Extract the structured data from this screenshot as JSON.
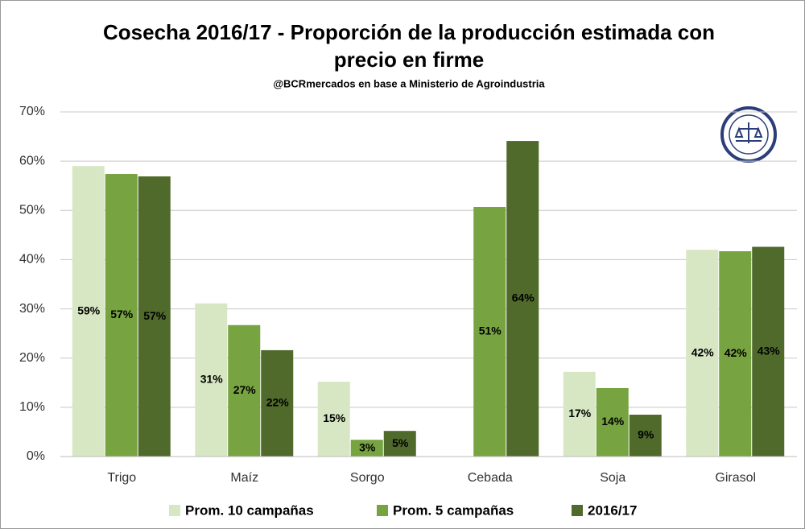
{
  "chart_data": {
    "type": "bar",
    "title": [
      "Cosecha 2016/17 - Proporción de la producción estimada con",
      "precio en firme"
    ],
    "subtitle": "@BCRmercados en base a Ministerio de Agroindustria",
    "categories": [
      "Trigo",
      "Maíz",
      "Sorgo",
      "Cebada",
      "Soja",
      "Girasol"
    ],
    "series": [
      {
        "name": "Prom. 10 campañas",
        "color": "#d8e7c3",
        "values": [
          59.0,
          31.1,
          15.2,
          null,
          17.2,
          42.0
        ],
        "value_labels": [
          "59%",
          "31%",
          "15%",
          null,
          "17%",
          "42%"
        ]
      },
      {
        "name": "Prom. 5 campañas",
        "color": "#77a340",
        "values": [
          57.4,
          26.7,
          3.4,
          50.7,
          13.9,
          41.7
        ],
        "value_labels": [
          "57%",
          "27%",
          "3%",
          "51%",
          "14%",
          "42%"
        ]
      },
      {
        "name": "2016/17",
        "color": "#4f6a2b",
        "values": [
          56.9,
          21.6,
          5.2,
          64.1,
          8.5,
          42.6
        ],
        "value_labels": [
          "57%",
          "22%",
          "5%",
          "64%",
          "9%",
          "43%"
        ]
      }
    ],
    "ylim": [
      0,
      70
    ],
    "yticks": [
      {
        "value": 0,
        "label": "0%"
      },
      {
        "value": 10,
        "label": "10%"
      },
      {
        "value": 20,
        "label": "20%"
      },
      {
        "value": 30,
        "label": "30%"
      },
      {
        "value": 40,
        "label": "40%"
      },
      {
        "value": 50,
        "label": "50%"
      },
      {
        "value": 60,
        "label": "60%"
      },
      {
        "value": 70,
        "label": "70%"
      }
    ],
    "grid": true,
    "legend": "bottom"
  }
}
